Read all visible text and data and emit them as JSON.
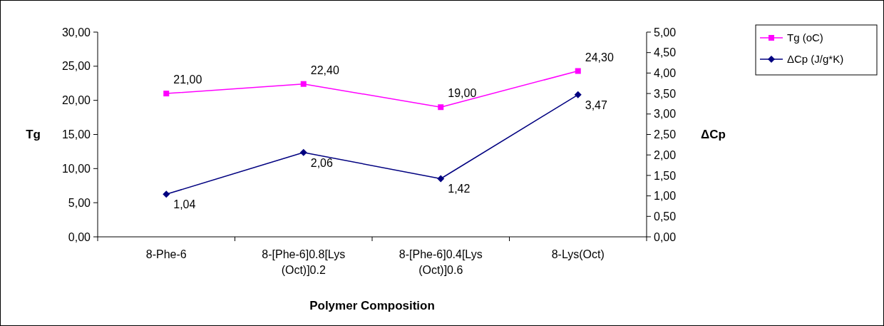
{
  "chart_data": {
    "type": "line",
    "xlabel": "Polymer Composition",
    "ylabel": "Tg",
    "y2label": "ΔCp",
    "categories": [
      "8-Phe-6",
      "8-[Phe-6]0.8[Lys (Oct)]0.2",
      "8-[Phe-6]0.4[Lys (Oct)]0.6",
      "8-Lys(Oct)"
    ],
    "series": [
      {
        "name": "Tg (oC)",
        "color": "#ff00ff",
        "marker": "square",
        "values": [
          21,
          22.4,
          19,
          24.3
        ],
        "value_labels": [
          "21,00",
          "22,40",
          "19,00",
          "24,30"
        ]
      },
      {
        "name": "ΔCp (J/g*K)",
        "color": "#000080",
        "marker": "diamond",
        "axis": "y2",
        "values": [
          1.04,
          2.06,
          1.42,
          3.47
        ],
        "value_labels": [
          "1,04",
          "2,06",
          "1,42",
          "3,47"
        ]
      }
    ],
    "ylim": [
      0,
      30
    ],
    "yticks": [
      {
        "value": 0,
        "label": "0,00"
      },
      {
        "value": 5,
        "label": "5,00"
      },
      {
        "value": 10,
        "label": "10,00"
      },
      {
        "value": 15,
        "label": "15,00"
      },
      {
        "value": 20,
        "label": "20,00"
      },
      {
        "value": 25,
        "label": "25,00"
      },
      {
        "value": 30,
        "label": "30,00"
      }
    ],
    "y2lim": [
      0,
      5
    ],
    "y2ticks": [
      {
        "value": 0,
        "label": "0,00"
      },
      {
        "value": 0.5,
        "label": "0,50"
      },
      {
        "value": 1,
        "label": "1,00"
      },
      {
        "value": 1.5,
        "label": "1,50"
      },
      {
        "value": 2,
        "label": "2,00"
      },
      {
        "value": 2.5,
        "label": "2,50"
      },
      {
        "value": 3,
        "label": "3,00"
      },
      {
        "value": 3.5,
        "label": "3,50"
      },
      {
        "value": 4,
        "label": "4,00"
      },
      {
        "value": 4.5,
        "label": "4,50"
      },
      {
        "value": 5,
        "label": "5,00"
      }
    ],
    "legend": "top right",
    "grid": false
  }
}
